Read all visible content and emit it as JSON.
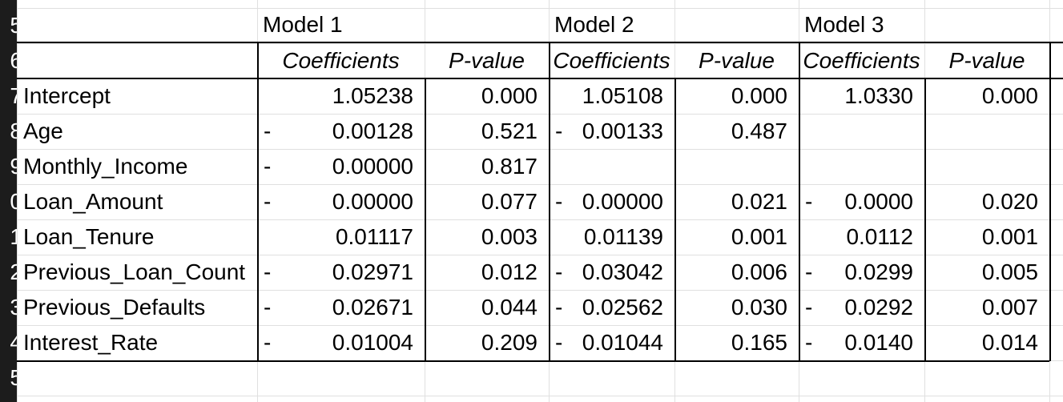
{
  "row_numbers": [
    "5",
    "6",
    "7",
    "8",
    "9",
    "0",
    "1",
    "2",
    "3",
    "4",
    "5"
  ],
  "model_headers": [
    "Model 1",
    "Model 2",
    "Model 3"
  ],
  "column_headers": [
    "Coefficients",
    "P-value",
    "Coefficients",
    "P-value",
    "Coefficients",
    "P-value"
  ],
  "rows": [
    {
      "label": "Intercept",
      "m1_sign": "",
      "m1_coef": "1.05238",
      "m1_p": "0.000",
      "m2_sign": "",
      "m2_coef": "1.05108",
      "m2_p": "0.000",
      "m3_sign": "",
      "m3_coef": "1.0330",
      "m3_p": "0.000"
    },
    {
      "label": "Age",
      "m1_sign": "-",
      "m1_coef": "0.00128",
      "m1_p": "0.521",
      "m2_sign": "-",
      "m2_coef": "0.00133",
      "m2_p": "0.487",
      "m3_sign": "",
      "m3_coef": "",
      "m3_p": ""
    },
    {
      "label": "Monthly_Income",
      "m1_sign": "-",
      "m1_coef": "0.00000",
      "m1_p": "0.817",
      "m2_sign": "",
      "m2_coef": "",
      "m2_p": "",
      "m3_sign": "",
      "m3_coef": "",
      "m3_p": ""
    },
    {
      "label": "Loan_Amount",
      "m1_sign": "-",
      "m1_coef": "0.00000",
      "m1_p": "0.077",
      "m2_sign": "-",
      "m2_coef": "0.00000",
      "m2_p": "0.021",
      "m3_sign": "-",
      "m3_coef": "0.0000",
      "m3_p": "0.020"
    },
    {
      "label": "Loan_Tenure",
      "m1_sign": "",
      "m1_coef": "0.01117",
      "m1_p": "0.003",
      "m2_sign": "",
      "m2_coef": "0.01139",
      "m2_p": "0.001",
      "m3_sign": "",
      "m3_coef": "0.0112",
      "m3_p": "0.001"
    },
    {
      "label": "Previous_Loan_Count",
      "m1_sign": "-",
      "m1_coef": "0.02971",
      "m1_p": "0.012",
      "m2_sign": "-",
      "m2_coef": "0.03042",
      "m2_p": "0.006",
      "m3_sign": "-",
      "m3_coef": "0.0299",
      "m3_p": "0.005"
    },
    {
      "label": "Previous_Defaults",
      "m1_sign": "-",
      "m1_coef": "0.02671",
      "m1_p": "0.044",
      "m2_sign": "-",
      "m2_coef": "0.02562",
      "m2_p": "0.030",
      "m3_sign": "-",
      "m3_coef": "0.0292",
      "m3_p": "0.007"
    },
    {
      "label": "Interest_Rate",
      "m1_sign": "-",
      "m1_coef": "0.01004",
      "m1_p": "0.209",
      "m2_sign": "-",
      "m2_coef": "0.01044",
      "m2_p": "0.165",
      "m3_sign": "-",
      "m3_coef": "0.0140",
      "m3_p": "0.014"
    }
  ]
}
